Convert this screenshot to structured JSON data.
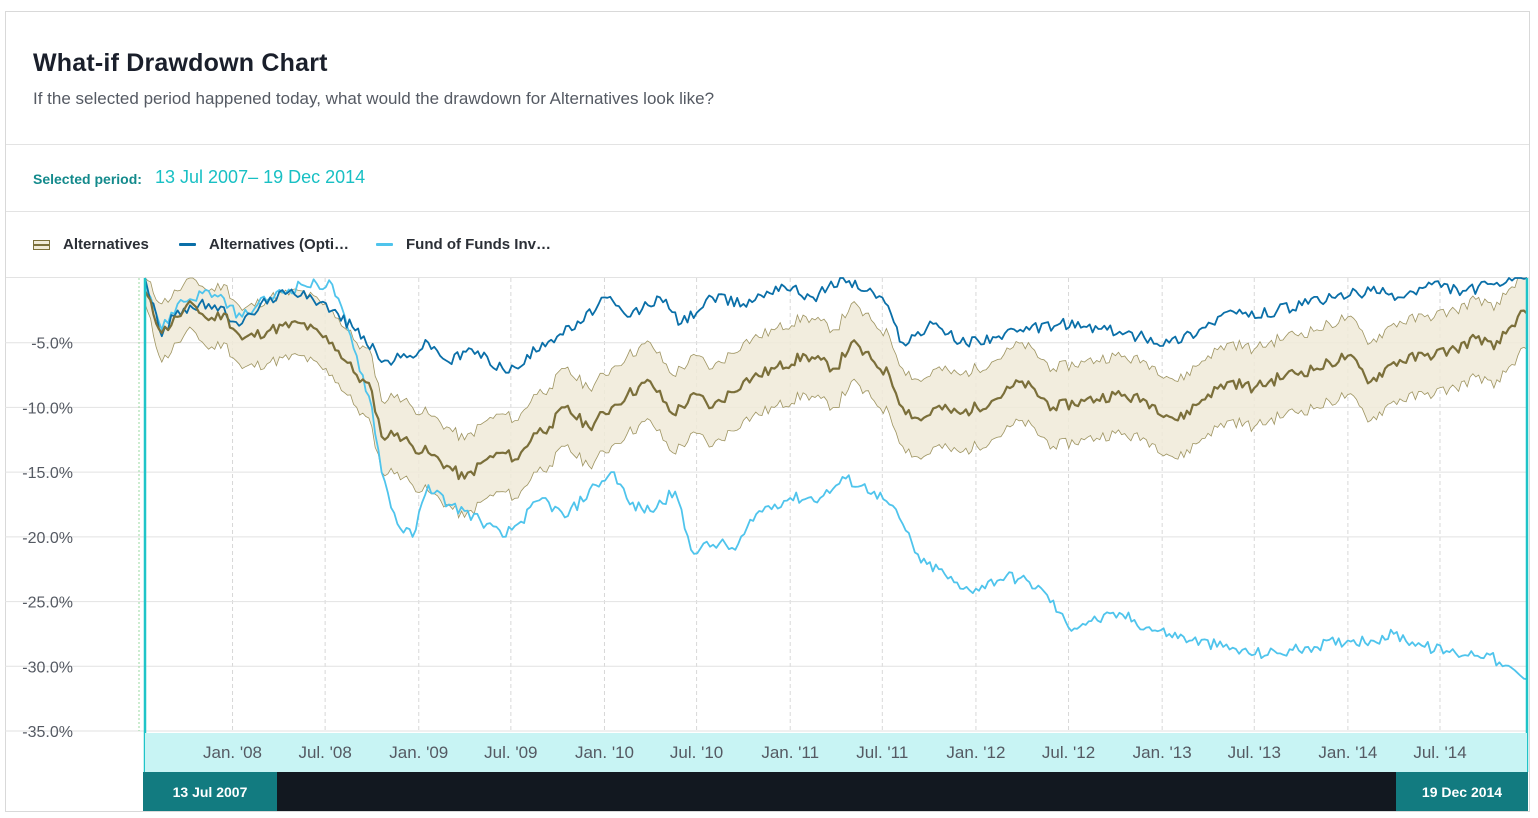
{
  "header": {
    "title": "What-if Drawdown Chart",
    "subtitle": "If the selected period happened today, what would the drawdown for Alternatives look like?"
  },
  "period": {
    "label": "Selected period:",
    "value": "13 Jul 2007– 19 Dec 2014"
  },
  "legend": [
    {
      "label": "Alternatives",
      "color": "#7b6f3a",
      "band_color": "#f0ead8",
      "symbol": "band-with-line"
    },
    {
      "label": "Alternatives (Opti…",
      "color": "#0a6fa8",
      "symbol": "line"
    },
    {
      "label": "Fund of Funds Inv…",
      "color": "#4fc4ec",
      "symbol": "line"
    }
  ],
  "navigator": {
    "start_label": "13 Jul 2007",
    "end_label": "19 Dec 2014",
    "accent_color": "#127b80",
    "band_color": "#c8f4f4"
  },
  "chart_data": {
    "type": "line",
    "title": "",
    "xlabel": "",
    "ylabel": "",
    "x_range": [
      "2007-07-13",
      "2014-12-19"
    ],
    "ylim": [
      -35,
      0
    ],
    "y_ticks": [
      "-5.0%",
      "-10.0%",
      "-15.0%",
      "-20.0%",
      "-25.0%",
      "-30.0%",
      "-35.0%"
    ],
    "y_tick_values": [
      -5,
      -10,
      -15,
      -20,
      -25,
      -30,
      -35
    ],
    "x_ticks": [
      "Jan. '08",
      "Jul. '08",
      "Jan. '09",
      "Jul. '09",
      "Jan. '10",
      "Jul. '10",
      "Jan. '11",
      "Jul. '11",
      "Jan. '12",
      "Jul. '12",
      "Jan. '13",
      "Jul. '13",
      "Jan. '14",
      "Jul. '14"
    ],
    "x_tick_dates": [
      "2008-01-01",
      "2008-07-01",
      "2009-01-01",
      "2009-07-01",
      "2010-01-01",
      "2010-07-01",
      "2011-01-01",
      "2011-07-01",
      "2012-01-01",
      "2012-07-01",
      "2013-01-01",
      "2013-07-01",
      "2014-01-01",
      "2014-07-01"
    ],
    "grid": true,
    "series": [
      {
        "name": "Alternatives",
        "color": "#7b6f3a",
        "x": [
          "2007-07-13",
          "2007-08-15",
          "2007-09-15",
          "2007-10-15",
          "2007-11-15",
          "2007-12-15",
          "2008-01-20",
          "2008-03-15",
          "2008-05-15",
          "2008-07-15",
          "2008-09-01",
          "2008-10-01",
          "2008-10-20",
          "2008-11-20",
          "2008-12-20",
          "2009-01-20",
          "2009-02-25",
          "2009-04-01",
          "2009-05-15",
          "2009-06-15",
          "2009-07-15",
          "2009-08-15",
          "2009-09-15",
          "2009-10-15",
          "2009-12-01",
          "2010-01-15",
          "2010-02-15",
          "2010-04-01",
          "2010-05-15",
          "2010-07-01",
          "2010-08-01",
          "2010-10-01",
          "2010-12-01",
          "2011-02-01",
          "2011-04-01",
          "2011-05-01",
          "2011-06-15",
          "2011-07-15",
          "2011-08-10",
          "2011-09-15",
          "2011-10-15",
          "2011-12-01",
          "2012-02-01",
          "2012-04-01",
          "2012-06-01",
          "2012-08-01",
          "2012-10-01",
          "2012-12-01",
          "2013-02-01",
          "2013-04-01",
          "2013-05-15",
          "2013-07-01",
          "2013-09-01",
          "2013-11-01",
          "2014-01-01",
          "2014-02-15",
          "2014-04-01",
          "2014-06-01",
          "2014-08-01",
          "2014-09-15",
          "2014-10-15",
          "2014-12-01",
          "2014-12-19"
        ],
        "y": [
          -1.0,
          -4.5,
          -3.0,
          -2.0,
          -3.5,
          -3.0,
          -5.0,
          -4.0,
          -3.5,
          -5.0,
          -7.5,
          -9.0,
          -12.5,
          -12.0,
          -13.0,
          -13.5,
          -14.5,
          -15.5,
          -14.0,
          -13.5,
          -14.0,
          -12.0,
          -11.5,
          -10.0,
          -11.5,
          -10.0,
          -9.0,
          -8.0,
          -10.5,
          -9.0,
          -10.0,
          -8.0,
          -7.0,
          -6.0,
          -7.0,
          -5.0,
          -6.5,
          -7.5,
          -10.0,
          -11.0,
          -10.0,
          -10.5,
          -9.5,
          -8.0,
          -10.0,
          -9.5,
          -9.0,
          -9.5,
          -11.0,
          -9.0,
          -8.0,
          -8.5,
          -7.5,
          -7.0,
          -6.0,
          -8.0,
          -6.5,
          -6.0,
          -5.5,
          -4.5,
          -5.5,
          -3.0,
          -1.0
        ]
      },
      {
        "name": "Alternatives (Opti…",
        "color": "#0a6fa8",
        "x": [
          "2007-07-13",
          "2007-08-15",
          "2007-09-15",
          "2007-11-15",
          "2008-01-20",
          "2008-03-15",
          "2008-05-20",
          "2008-07-15",
          "2008-09-15",
          "2008-10-20",
          "2008-12-15",
          "2009-01-20",
          "2009-03-01",
          "2009-04-15",
          "2009-06-15",
          "2009-07-15",
          "2009-09-01",
          "2009-11-15",
          "2010-01-01",
          "2010-02-15",
          "2010-04-20",
          "2010-06-01",
          "2010-08-01",
          "2010-10-01",
          "2010-12-15",
          "2011-02-15",
          "2011-04-15",
          "2011-06-01",
          "2011-07-01",
          "2011-08-10",
          "2011-10-15",
          "2011-12-01",
          "2012-02-15",
          "2012-04-15",
          "2012-06-15",
          "2012-09-15",
          "2012-11-15",
          "2013-01-15",
          "2013-03-15",
          "2013-05-15",
          "2013-06-20",
          "2013-08-15",
          "2013-10-15",
          "2013-12-01",
          "2014-02-15",
          "2014-04-15",
          "2014-06-15",
          "2014-08-15",
          "2014-10-15",
          "2014-12-19"
        ],
        "y": [
          0.0,
          -4.5,
          -2.5,
          -2.0,
          -3.5,
          -1.5,
          -1.0,
          -2.5,
          -4.5,
          -6.5,
          -6.0,
          -5.0,
          -6.5,
          -5.5,
          -7.0,
          -7.0,
          -5.0,
          -3.5,
          -1.5,
          -3.0,
          -1.5,
          -3.5,
          -1.5,
          -2.0,
          -0.5,
          -1.5,
          0.0,
          -1.0,
          -1.5,
          -5.0,
          -3.5,
          -5.0,
          -4.5,
          -4.0,
          -3.5,
          -4.0,
          -4.5,
          -5.0,
          -4.0,
          -2.5,
          -3.0,
          -2.5,
          -2.0,
          -1.5,
          -1.0,
          -1.5,
          -0.5,
          -1.0,
          -0.5,
          0.0
        ]
      },
      {
        "name": "Fund of Funds Inv…",
        "color": "#4fc4ec",
        "x": [
          "2007-07-13",
          "2007-08-15",
          "2007-09-15",
          "2007-11-15",
          "2008-01-20",
          "2008-03-15",
          "2008-05-15",
          "2008-07-15",
          "2008-09-01",
          "2008-10-01",
          "2008-10-20",
          "2008-11-20",
          "2008-12-20",
          "2009-01-20",
          "2009-03-01",
          "2009-04-01",
          "2009-05-15",
          "2009-06-15",
          "2009-07-15",
          "2009-09-01",
          "2009-10-15",
          "2009-12-15",
          "2010-01-20",
          "2010-02-20",
          "2010-04-01",
          "2010-05-20",
          "2010-06-20",
          "2010-08-15",
          "2010-09-15",
          "2010-11-01",
          "2011-01-01",
          "2011-03-01",
          "2011-04-20",
          "2011-06-15",
          "2011-07-15",
          "2011-08-10",
          "2011-09-15",
          "2011-10-20",
          "2011-12-01",
          "2012-01-01",
          "2012-03-01",
          "2012-04-15",
          "2012-05-20",
          "2012-07-01",
          "2012-08-15",
          "2012-10-15",
          "2012-12-01",
          "2013-01-15",
          "2013-03-01",
          "2013-05-01",
          "2013-06-20",
          "2013-08-15",
          "2013-10-15",
          "2014-01-01",
          "2014-02-15",
          "2014-04-01",
          "2014-06-01",
          "2014-08-01",
          "2014-10-01",
          "2014-11-01",
          "2014-12-19"
        ],
        "y": [
          0.0,
          -4.0,
          -2.0,
          -1.0,
          -3.0,
          -1.5,
          -0.5,
          -0.5,
          -6.0,
          -10.0,
          -15.0,
          -19.0,
          -20.0,
          -16.0,
          -17.5,
          -18.0,
          -19.0,
          -20.0,
          -19.0,
          -17.0,
          -18.5,
          -16.0,
          -15.0,
          -17.5,
          -18.0,
          -16.5,
          -21.0,
          -20.5,
          -21.0,
          -18.0,
          -17.0,
          -17.0,
          -15.5,
          -16.5,
          -17.5,
          -19.0,
          -22.0,
          -22.5,
          -24.0,
          -24.0,
          -23.0,
          -23.5,
          -24.5,
          -27.0,
          -26.5,
          -26.0,
          -27.0,
          -27.5,
          -28.0,
          -28.5,
          -29.0,
          -29.0,
          -28.5,
          -28.0,
          -28.0,
          -27.5,
          -28.5,
          -29.0,
          -29.0,
          -30.0,
          -31.0
        ]
      }
    ],
    "band": {
      "name": "Alternatives",
      "color": "#f0ead8",
      "x": [
        "2007-07-13",
        "2007-08-15",
        "2007-09-15",
        "2007-10-15",
        "2007-11-15",
        "2007-12-15",
        "2008-01-20",
        "2008-03-15",
        "2008-05-15",
        "2008-07-15",
        "2008-09-01",
        "2008-10-01",
        "2008-10-20",
        "2008-11-20",
        "2008-12-20",
        "2009-01-20",
        "2009-02-25",
        "2009-04-01",
        "2009-05-15",
        "2009-06-15",
        "2009-07-15",
        "2009-08-15",
        "2009-09-15",
        "2009-10-15",
        "2009-12-01",
        "2010-01-15",
        "2010-02-15",
        "2010-04-01",
        "2010-05-15",
        "2010-07-01",
        "2010-08-01",
        "2010-10-01",
        "2010-12-01",
        "2011-02-01",
        "2011-04-01",
        "2011-05-01",
        "2011-06-15",
        "2011-07-15",
        "2011-08-10",
        "2011-09-15",
        "2011-10-15",
        "2011-12-01",
        "2012-02-01",
        "2012-04-01",
        "2012-06-01",
        "2012-08-01",
        "2012-10-01",
        "2012-12-01",
        "2013-02-01",
        "2013-04-01",
        "2013-05-15",
        "2013-07-01",
        "2013-09-01",
        "2013-11-01",
        "2014-01-01",
        "2014-02-15",
        "2014-04-01",
        "2014-06-01",
        "2014-08-01",
        "2014-09-15",
        "2014-10-15",
        "2014-12-01",
        "2014-12-19"
      ],
      "upper": [
        0.0,
        -2.0,
        -1.0,
        0.0,
        -1.0,
        -0.5,
        -2.5,
        -1.5,
        -1.0,
        -2.5,
        -5.0,
        -6.0,
        -9.5,
        -9.0,
        -10.0,
        -10.5,
        -11.5,
        -12.5,
        -11.0,
        -10.5,
        -11.0,
        -9.0,
        -8.5,
        -7.0,
        -8.5,
        -7.0,
        -6.0,
        -5.0,
        -7.5,
        -6.0,
        -7.0,
        -5.0,
        -4.0,
        -3.0,
        -4.0,
        -2.0,
        -3.5,
        -4.5,
        -7.0,
        -8.0,
        -7.0,
        -7.5,
        -6.5,
        -5.0,
        -7.0,
        -6.5,
        -6.0,
        -6.5,
        -8.0,
        -6.0,
        -5.0,
        -5.5,
        -4.5,
        -4.0,
        -3.0,
        -5.0,
        -3.5,
        -3.0,
        -2.5,
        -1.5,
        -2.5,
        0.0,
        0.0
      ],
      "lower": [
        -2.0,
        -6.5,
        -5.0,
        -4.0,
        -5.5,
        -5.0,
        -7.0,
        -6.5,
        -6.0,
        -7.5,
        -10.0,
        -11.5,
        -15.0,
        -15.0,
        -16.0,
        -16.5,
        -17.5,
        -18.5,
        -17.0,
        -16.5,
        -17.0,
        -15.0,
        -14.5,
        -13.0,
        -14.5,
        -13.0,
        -12.0,
        -11.0,
        -13.5,
        -12.0,
        -13.0,
        -11.0,
        -10.0,
        -9.0,
        -10.0,
        -8.0,
        -9.5,
        -10.5,
        -13.0,
        -14.0,
        -13.0,
        -13.5,
        -12.5,
        -11.0,
        -13.0,
        -12.5,
        -12.0,
        -12.5,
        -14.0,
        -12.0,
        -11.0,
        -11.5,
        -10.5,
        -10.0,
        -9.0,
        -11.0,
        -9.5,
        -9.0,
        -8.5,
        -7.5,
        -8.5,
        -6.0,
        -5.5
      ]
    }
  }
}
